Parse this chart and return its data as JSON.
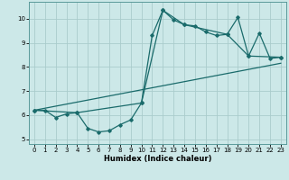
{
  "xlabel": "Humidex (Indice chaleur)",
  "bg_color": "#cce8e8",
  "grid_color": "#aacccc",
  "line_color": "#1a6b6b",
  "xlim": [
    -0.5,
    23.5
  ],
  "ylim": [
    4.8,
    10.7
  ],
  "yticks": [
    5,
    6,
    7,
    8,
    9,
    10
  ],
  "xticks": [
    0,
    1,
    2,
    3,
    4,
    5,
    6,
    7,
    8,
    9,
    10,
    11,
    12,
    13,
    14,
    15,
    16,
    17,
    18,
    19,
    20,
    21,
    22,
    23
  ],
  "line1_x": [
    0,
    1,
    2,
    3,
    4,
    5,
    6,
    7,
    8,
    9,
    10,
    11,
    12,
    13,
    14,
    15,
    16,
    17,
    18,
    19,
    20,
    21,
    22,
    23
  ],
  "line1_y": [
    6.2,
    6.2,
    5.9,
    6.05,
    6.1,
    5.45,
    5.3,
    5.35,
    5.6,
    5.8,
    6.5,
    9.3,
    10.35,
    9.95,
    9.75,
    9.7,
    9.45,
    9.3,
    9.35,
    10.05,
    8.45,
    9.4,
    8.35,
    8.4
  ],
  "line2_x": [
    0,
    4,
    10,
    12,
    14,
    18,
    20,
    23
  ],
  "line2_y": [
    6.2,
    6.1,
    6.5,
    10.35,
    9.75,
    9.35,
    8.45,
    8.4
  ],
  "line3_x": [
    0,
    23
  ],
  "line3_y": [
    6.2,
    8.15
  ]
}
